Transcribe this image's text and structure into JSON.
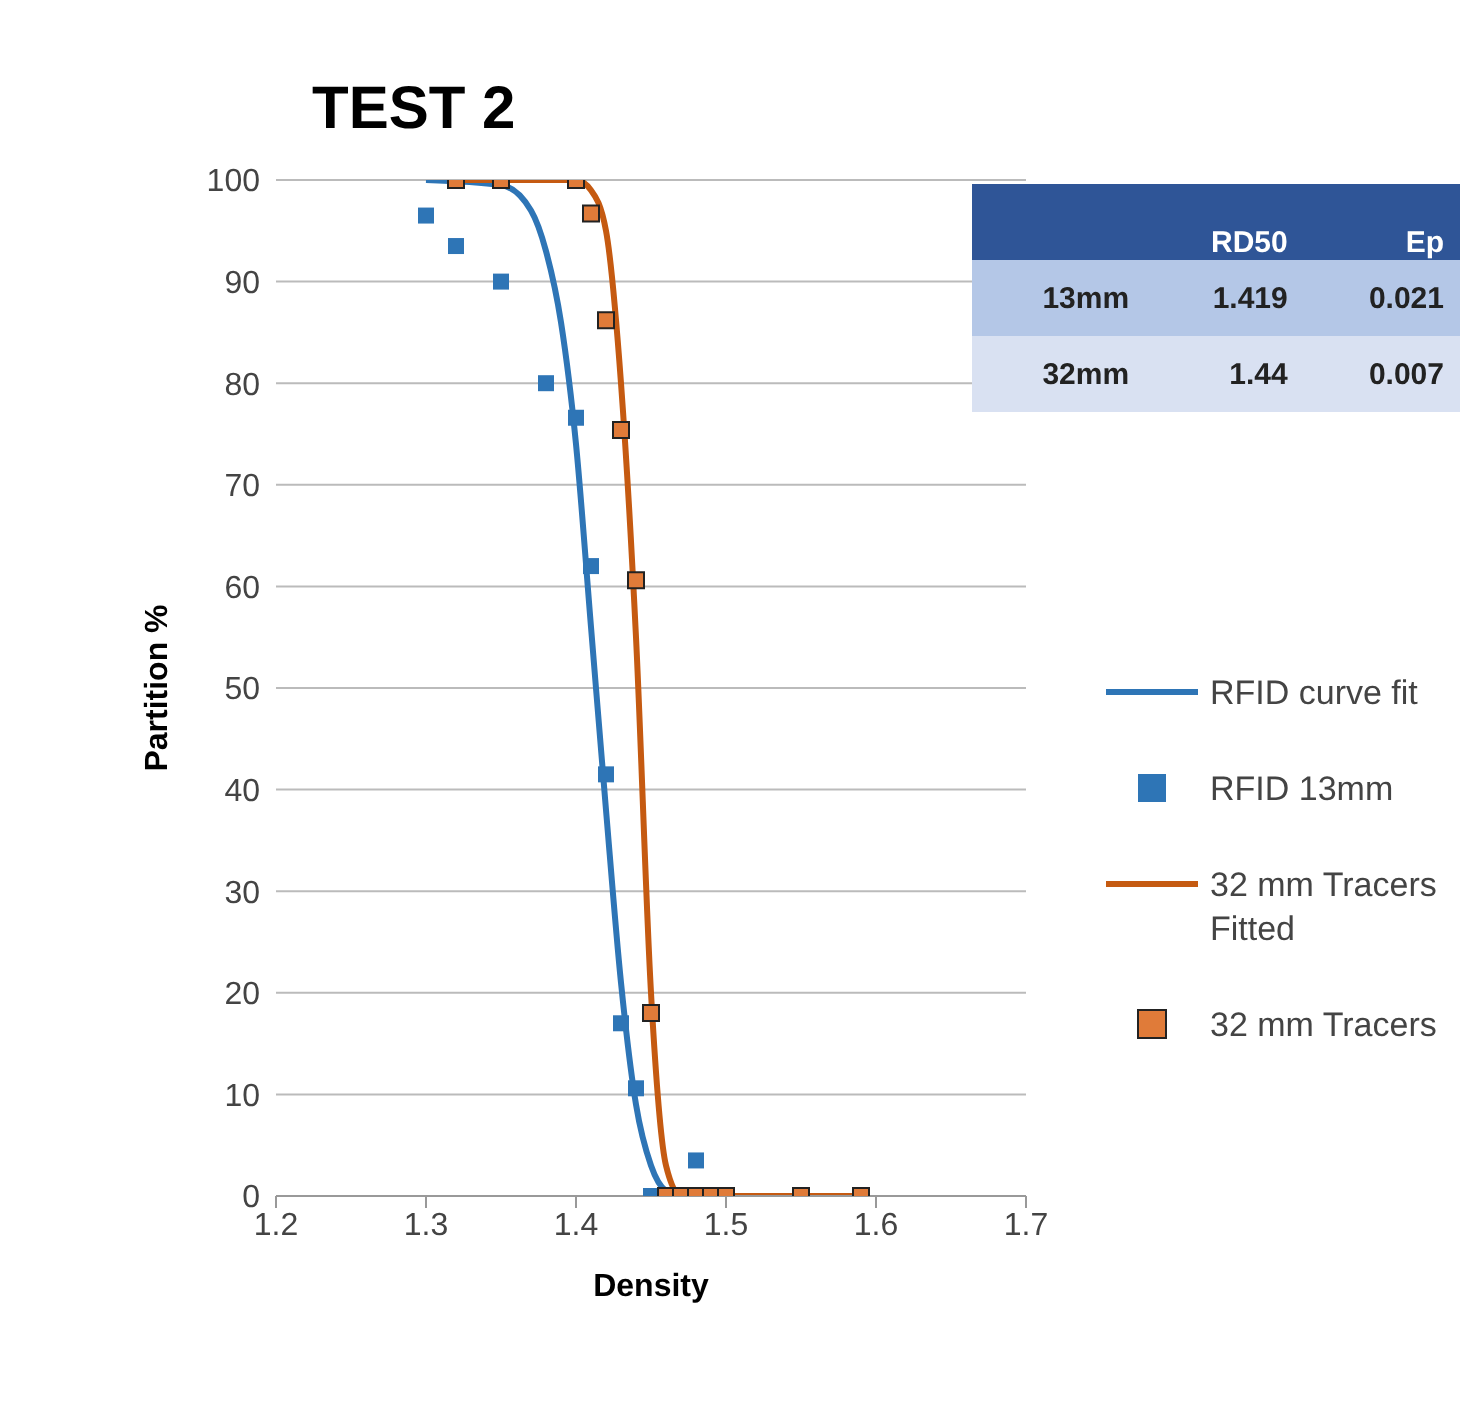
{
  "chart_data": {
    "type": "scatter",
    "title": "TEST 2",
    "xlabel": "Density",
    "ylabel": "Partition %",
    "xlim": [
      1.2,
      1.7
    ],
    "xticks": [
      1.2,
      1.3,
      1.4,
      1.5,
      1.6,
      1.7
    ],
    "ylim": [
      0,
      100
    ],
    "yticks": [
      0,
      10,
      20,
      30,
      40,
      50,
      60,
      70,
      80,
      90,
      100
    ],
    "grid": "y",
    "legend": "right",
    "annotations": [
      "RD50",
      "Ep",
      "13mm",
      "1.419",
      "0.021",
      "32mm",
      "1.44",
      "0.007"
    ],
    "series": [
      {
        "type": "line",
        "name": "RFID curve fit",
        "color": "#2e75b6",
        "marker": "none",
        "line_style": "solid",
        "x": [
          1.3,
          1.35,
          1.37,
          1.38,
          1.39,
          1.4,
          1.41,
          1.42,
          1.43,
          1.44,
          1.45,
          1.46,
          1.47,
          1.59
        ],
        "values": [
          100,
          99.5,
          97,
          93,
          86,
          74,
          56,
          38,
          21,
          9,
          3,
          0.5,
          0,
          0
        ]
      },
      {
        "name": "RFID 13mm",
        "color": "#2e75b6",
        "marker": "square",
        "x": [
          1.3,
          1.32,
          1.35,
          1.38,
          1.4,
          1.41,
          1.42,
          1.43,
          1.44,
          1.45,
          1.48
        ],
        "values": [
          96.5,
          93.5,
          90,
          80,
          76.6,
          62,
          41.5,
          17,
          10.6,
          0,
          3.5
        ]
      },
      {
        "type": "line",
        "name": "32 mm Tracers Fitted",
        "color": "#c55a11",
        "marker": "none",
        "line_style": "solid",
        "x": [
          1.32,
          1.4,
          1.41,
          1.42,
          1.43,
          1.44,
          1.45,
          1.46,
          1.47,
          1.59
        ],
        "values": [
          100,
          100,
          99,
          95,
          80,
          55,
          20,
          3,
          0,
          0
        ]
      },
      {
        "name": "32 mm Tracers",
        "color": "#e07b39",
        "marker": "square",
        "x": [
          1.32,
          1.35,
          1.4,
          1.41,
          1.42,
          1.43,
          1.44,
          1.45,
          1.46,
          1.47,
          1.48,
          1.49,
          1.5,
          1.55,
          1.59
        ],
        "values": [
          100,
          100,
          100,
          96.7,
          86.2,
          75.4,
          60.6,
          18,
          0,
          0,
          0,
          0,
          0,
          0,
          0
        ]
      }
    ]
  }
}
